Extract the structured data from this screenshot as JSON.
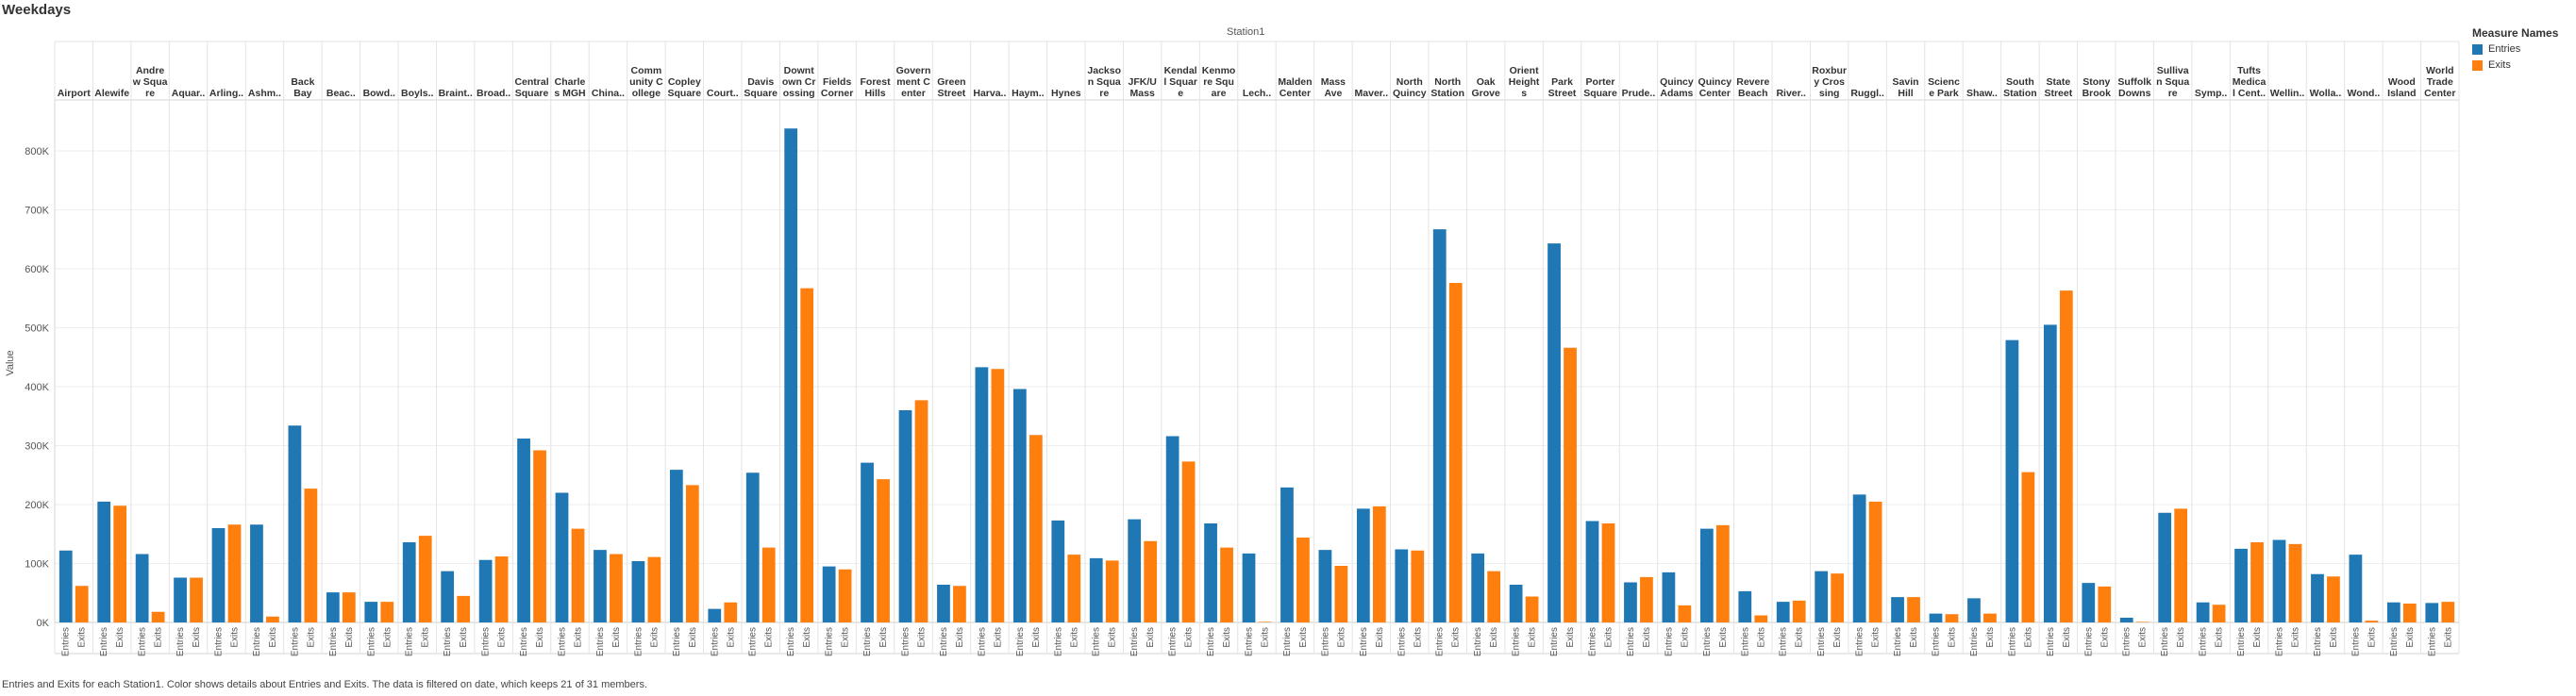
{
  "sheet_title": "Weekdays",
  "caption": "Entries and Exits for each Station1.  Color shows details about Entries and Exits. The data is filtered on date, which keeps 21 of 31 members.",
  "legend": {
    "title": "Measure Names",
    "items": [
      {
        "label": "Entries",
        "color": "#1f77b4"
      },
      {
        "label": "Exits",
        "color": "#ff7f0e"
      }
    ]
  },
  "chart_data": {
    "type": "bar",
    "title": "Weekdays",
    "column_header": "Station1",
    "ylabel": "Value",
    "ylim": [
      0,
      880000
    ],
    "yticks": [
      0,
      100000,
      200000,
      300000,
      400000,
      500000,
      600000,
      700000,
      800000
    ],
    "ytick_labels": [
      "0K",
      "100K",
      "200K",
      "300K",
      "400K",
      "500K",
      "600K",
      "700K",
      "800K"
    ],
    "grid": true,
    "legend_position": "top-right",
    "measure_labels": [
      "Entries",
      "Exits"
    ],
    "colors": {
      "Entries": "#1f77b4",
      "Exits": "#ff7f0e"
    },
    "categories": [
      "Airport",
      "Alewife",
      "Andrew Square",
      "Aquar..",
      "Arling..",
      "Ashm..",
      "Back Bay",
      "Beac..",
      "Bowd..",
      "Boyls..",
      "Braint..",
      "Broad..",
      "Central Square",
      "Charles MGH",
      "China..",
      "Community College",
      "Copley Square",
      "Court..",
      "Davis Square",
      "Downtown Crossing",
      "Fields Corner",
      "Forest Hills",
      "Government Center",
      "Green Street",
      "Harva..",
      "Haym..",
      "Hynes",
      "Jackson Square",
      "JFK/UMass",
      "Kendall Square",
      "Kenmore Square",
      "Lech..",
      "Malden Center",
      "Mass Ave",
      "Maver..",
      "North Quincy",
      "North Station",
      "Oak Grove",
      "Orient Heights",
      "Park Street",
      "Porter Square",
      "Prude..",
      "Quincy Adams",
      "Quincy Center",
      "Revere Beach",
      "River..",
      "Roxbury Crossing",
      "Ruggl..",
      "Savin Hill",
      "Science Park",
      "Shaw..",
      "South Station",
      "State Street",
      "Stony Brook",
      "Suffolk Downs",
      "Sullivan Square",
      "Symp..",
      "Tufts Medical Center",
      "Wellin..",
      "Wolla..",
      "Wond..",
      "Wood Island",
      "World Trade Center"
    ],
    "header_lines": [
      [
        "Airport"
      ],
      [
        "Alewife"
      ],
      [
        "Andre",
        "w Squa",
        "re"
      ],
      [
        "Aquar.."
      ],
      [
        "Arling.."
      ],
      [
        "Ashm.."
      ],
      [
        "Back",
        "Bay"
      ],
      [
        "Beac.."
      ],
      [
        "Bowd.."
      ],
      [
        "Boyls.."
      ],
      [
        "Braint.."
      ],
      [
        "Broad.."
      ],
      [
        "Central",
        "Square"
      ],
      [
        "Charle",
        "s MGH"
      ],
      [
        "China.."
      ],
      [
        "Comm",
        "unity C",
        "ollege"
      ],
      [
        "Copley",
        "Square"
      ],
      [
        "Court.."
      ],
      [
        "Davis",
        "Square"
      ],
      [
        "Downt",
        "own Cr",
        "ossing"
      ],
      [
        "Fields",
        "Corner"
      ],
      [
        "Forest",
        "Hills"
      ],
      [
        "Govern",
        "ment C",
        "enter"
      ],
      [
        "Green",
        "Street"
      ],
      [
        "Harva.."
      ],
      [
        "Haym.."
      ],
      [
        "Hynes"
      ],
      [
        "Jackso",
        "n Squa",
        "re"
      ],
      [
        "JFK/U",
        "Mass"
      ],
      [
        "Kendal",
        "l Squar",
        "e"
      ],
      [
        "Kenmo",
        "re Squ",
        "are"
      ],
      [
        "Lech.."
      ],
      [
        "Malden",
        "Center"
      ],
      [
        "Mass",
        "Ave"
      ],
      [
        "Maver.."
      ],
      [
        "North",
        "Quincy"
      ],
      [
        "North",
        "Station"
      ],
      [
        "Oak",
        "Grove"
      ],
      [
        "Orient",
        "Height",
        "s"
      ],
      [
        "Park",
        "Street"
      ],
      [
        "Porter",
        "Square"
      ],
      [
        "Prude.."
      ],
      [
        "Quincy",
        "Adams"
      ],
      [
        "Quincy",
        "Center"
      ],
      [
        "Revere",
        "Beach"
      ],
      [
        "River.."
      ],
      [
        "Roxbur",
        "y Cros",
        "sing"
      ],
      [
        "Ruggl.."
      ],
      [
        "Savin",
        "Hill"
      ],
      [
        "Scienc",
        "e Park"
      ],
      [
        "Shaw.."
      ],
      [
        "South",
        "Station"
      ],
      [
        "State",
        "Street"
      ],
      [
        "Stony",
        "Brook"
      ],
      [
        "Suffolk",
        "Downs"
      ],
      [
        "Sulliva",
        "n Squa",
        "re"
      ],
      [
        "Symp.."
      ],
      [
        "Tufts",
        "Medica",
        "l Cent.."
      ],
      [
        "Wellin.."
      ],
      [
        "Wolla.."
      ],
      [
        "Wond.."
      ],
      [
        "Wood",
        "Island"
      ],
      [
        "World",
        "Trade",
        "Center"
      ]
    ],
    "series": [
      {
        "name": "Entries",
        "values": [
          122000,
          205000,
          116000,
          76000,
          160000,
          166000,
          334000,
          51000,
          35000,
          136000,
          87000,
          106000,
          312000,
          220000,
          123000,
          104000,
          259000,
          23000,
          254000,
          838000,
          95000,
          271000,
          360000,
          64000,
          433000,
          396000,
          173000,
          109000,
          175000,
          316000,
          168000,
          117000,
          229000,
          123000,
          193000,
          124000,
          667000,
          117000,
          64000,
          643000,
          172000,
          68000,
          85000,
          159000,
          53000,
          35000,
          87000,
          217000,
          43000,
          15000,
          41000,
          479000,
          505000,
          67000,
          8000,
          186000,
          34000,
          125000,
          140000,
          82000,
          115000,
          34000,
          33000
        ]
      },
      {
        "name": "Exits",
        "values": [
          62000,
          198000,
          18000,
          76000,
          166000,
          10000,
          227000,
          51000,
          35000,
          147000,
          45000,
          112000,
          292000,
          159000,
          116000,
          111000,
          233000,
          34000,
          127000,
          567000,
          90000,
          243000,
          377000,
          62000,
          430000,
          318000,
          115000,
          105000,
          138000,
          273000,
          127000,
          1000,
          144000,
          96000,
          197000,
          122000,
          576000,
          87000,
          44000,
          466000,
          168000,
          77000,
          29000,
          165000,
          12000,
          37000,
          83000,
          205000,
          43000,
          14000,
          15000,
          255000,
          563000,
          61000,
          1000,
          193000,
          30000,
          136000,
          133000,
          78000,
          3000,
          32000,
          35000
        ]
      }
    ]
  }
}
